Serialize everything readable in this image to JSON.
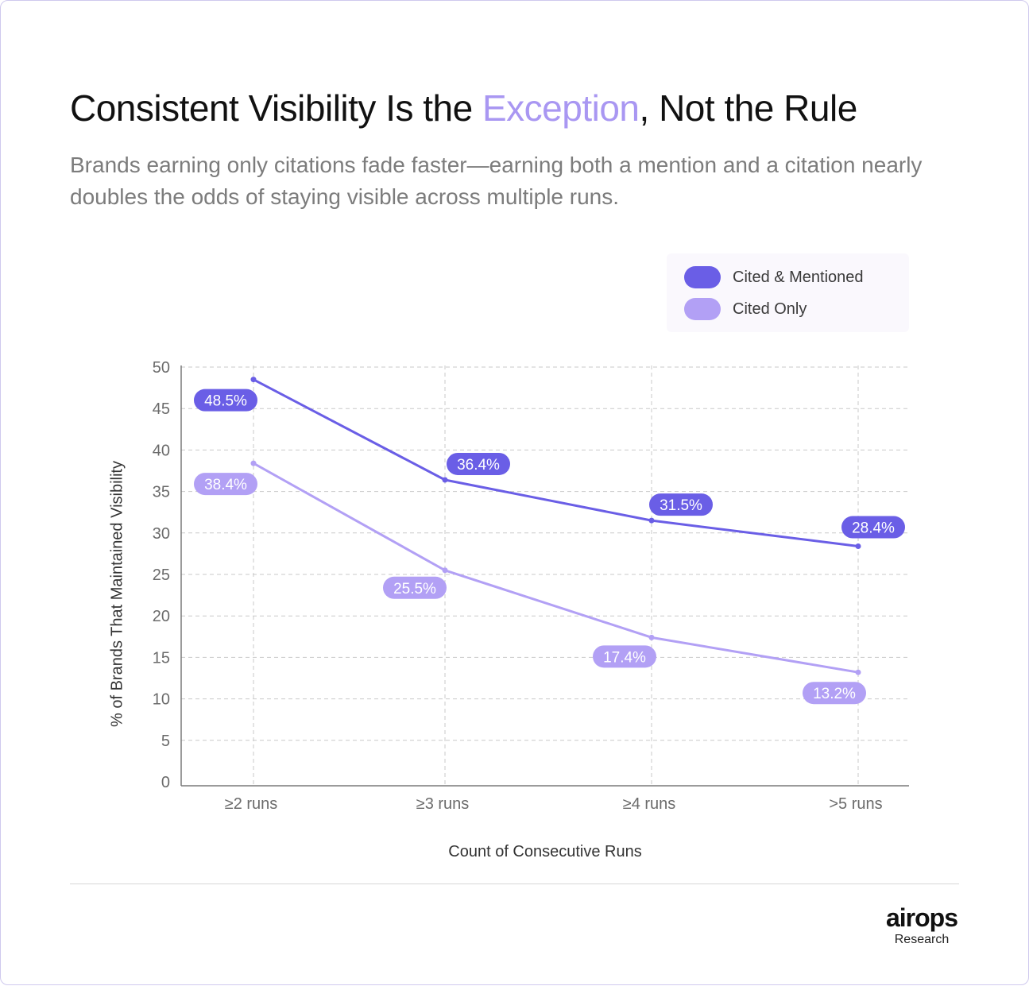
{
  "header": {
    "title_before": "Consistent Visibility Is the ",
    "title_accent": "Exception",
    "title_after": ", Not the Rule",
    "subtitle": "Brands earning only citations fade faster—earning both a mention and a citation nearly doubles the odds of staying visible across multiple runs."
  },
  "colors": {
    "accent": "#a997f2",
    "cited_mentioned": "#6a5ee6",
    "cited_only": "#b2a0f5"
  },
  "legend": {
    "items": [
      {
        "label": "Cited & Mentioned",
        "color": "#6a5ee6"
      },
      {
        "label": "Cited Only",
        "color": "#b2a0f5"
      }
    ]
  },
  "chart_data": {
    "type": "line",
    "categories": [
      "≥2 runs",
      "≥3 runs",
      "≥4 runs",
      ">5 runs"
    ],
    "series": [
      {
        "name": "Cited & Mentioned",
        "values": [
          48.5,
          36.4,
          31.5,
          28.4
        ],
        "labels": [
          "48.5%",
          "36.4%",
          "31.5%",
          "28.4%"
        ],
        "color": "#6a5ee6",
        "label_text_color": "#ffffff"
      },
      {
        "name": "Cited Only",
        "values": [
          38.4,
          25.5,
          17.4,
          13.2
        ],
        "labels": [
          "38.4%",
          "25.5%",
          "17.4%",
          "13.2%"
        ],
        "color": "#b2a0f5",
        "label_text_color": "#ffffff"
      }
    ],
    "xlabel": "Count of Consecutive Runs",
    "ylabel": "% of Brands That Maintained Visibility",
    "ylim": [
      0,
      50
    ],
    "yticks": [
      0,
      5,
      10,
      15,
      20,
      25,
      30,
      35,
      40,
      45,
      50
    ],
    "grid": true,
    "legend_position": "top-right"
  },
  "footer": {
    "brand": "airops",
    "brand_sub": "Research"
  }
}
